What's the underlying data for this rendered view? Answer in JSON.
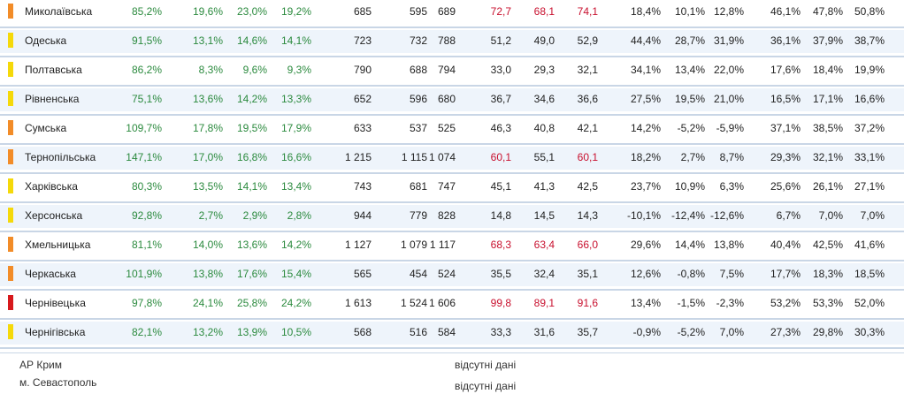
{
  "rows": [
    {
      "region": "Миколаївська",
      "marker": "orange",
      "v": [
        "85,2%",
        "19,6%",
        "23,0%",
        "19,2%",
        "685",
        "595",
        "689",
        "72,7",
        "68,1",
        "74,1",
        "18,4%",
        "10,1%",
        "12,8%",
        "46,1%",
        "47,8%",
        "50,8%"
      ],
      "c": [
        "g",
        "g",
        "g",
        "g",
        "d",
        "d",
        "d",
        "r",
        "r",
        "r",
        "d",
        "d",
        "d",
        "d",
        "d",
        "d"
      ]
    },
    {
      "region": "Одеська",
      "marker": "yellow",
      "v": [
        "91,5%",
        "13,1%",
        "14,6%",
        "14,1%",
        "723",
        "732",
        "788",
        "51,2",
        "49,0",
        "52,9",
        "44,4%",
        "28,7%",
        "31,9%",
        "36,1%",
        "37,9%",
        "38,7%"
      ],
      "c": [
        "g",
        "g",
        "g",
        "g",
        "d",
        "d",
        "d",
        "d",
        "d",
        "d",
        "d",
        "d",
        "d",
        "d",
        "d",
        "d"
      ]
    },
    {
      "region": "Полтавська",
      "marker": "yellow",
      "v": [
        "86,2%",
        "8,3%",
        "9,6%",
        "9,3%",
        "790",
        "688",
        "794",
        "33,0",
        "29,3",
        "32,1",
        "34,1%",
        "13,4%",
        "22,0%",
        "17,6%",
        "18,4%",
        "19,9%"
      ],
      "c": [
        "g",
        "g",
        "g",
        "g",
        "d",
        "d",
        "d",
        "d",
        "d",
        "d",
        "d",
        "d",
        "d",
        "d",
        "d",
        "d"
      ]
    },
    {
      "region": "Рівненська",
      "marker": "yellow",
      "v": [
        "75,1%",
        "13,6%",
        "14,2%",
        "13,3%",
        "652",
        "596",
        "680",
        "36,7",
        "34,6",
        "36,6",
        "27,5%",
        "19,5%",
        "21,0%",
        "16,5%",
        "17,1%",
        "16,6%"
      ],
      "c": [
        "g",
        "g",
        "g",
        "g",
        "d",
        "d",
        "d",
        "d",
        "d",
        "d",
        "d",
        "d",
        "d",
        "d",
        "d",
        "d"
      ]
    },
    {
      "region": "Сумська",
      "marker": "orange",
      "v": [
        "109,7%",
        "17,8%",
        "19,5%",
        "17,9%",
        "633",
        "537",
        "525",
        "46,3",
        "40,8",
        "42,1",
        "14,2%",
        "-5,2%",
        "-5,9%",
        "37,1%",
        "38,5%",
        "37,2%"
      ],
      "c": [
        "g",
        "g",
        "g",
        "g",
        "d",
        "d",
        "d",
        "d",
        "d",
        "d",
        "d",
        "d",
        "d",
        "d",
        "d",
        "d"
      ]
    },
    {
      "region": "Тернопільська",
      "marker": "orange",
      "v": [
        "147,1%",
        "17,0%",
        "16,8%",
        "16,6%",
        "1 215",
        "1 115",
        "1 074",
        "60,1",
        "55,1",
        "60,1",
        "18,2%",
        "2,7%",
        "8,7%",
        "29,3%",
        "32,1%",
        "33,1%"
      ],
      "c": [
        "g",
        "g",
        "g",
        "g",
        "d",
        "d",
        "d",
        "r",
        "d",
        "r",
        "d",
        "d",
        "d",
        "d",
        "d",
        "d"
      ]
    },
    {
      "region": "Харківська",
      "marker": "yellow",
      "v": [
        "80,3%",
        "13,5%",
        "14,1%",
        "13,4%",
        "743",
        "681",
        "747",
        "45,1",
        "41,3",
        "42,5",
        "23,7%",
        "10,9%",
        "6,3%",
        "25,6%",
        "26,1%",
        "27,1%"
      ],
      "c": [
        "g",
        "g",
        "g",
        "g",
        "d",
        "d",
        "d",
        "d",
        "d",
        "d",
        "d",
        "d",
        "d",
        "d",
        "d",
        "d"
      ]
    },
    {
      "region": "Херсонська",
      "marker": "yellow",
      "v": [
        "92,8%",
        "2,7%",
        "2,9%",
        "2,8%",
        "944",
        "779",
        "828",
        "14,8",
        "14,5",
        "14,3",
        "-10,1%",
        "-12,4%",
        "-12,6%",
        "6,7%",
        "7,0%",
        "7,0%"
      ],
      "c": [
        "g",
        "g",
        "g",
        "g",
        "d",
        "d",
        "d",
        "d",
        "d",
        "d",
        "d",
        "d",
        "d",
        "d",
        "d",
        "d"
      ]
    },
    {
      "region": "Хмельницька",
      "marker": "orange",
      "v": [
        "81,1%",
        "14,0%",
        "13,6%",
        "14,2%",
        "1 127",
        "1 079",
        "1 117",
        "68,3",
        "63,4",
        "66,0",
        "29,6%",
        "14,4%",
        "13,8%",
        "40,4%",
        "42,5%",
        "41,6%"
      ],
      "c": [
        "g",
        "g",
        "g",
        "g",
        "d",
        "d",
        "d",
        "r",
        "r",
        "r",
        "d",
        "d",
        "d",
        "d",
        "d",
        "d"
      ]
    },
    {
      "region": "Черкаська",
      "marker": "orange",
      "v": [
        "101,9%",
        "13,8%",
        "17,6%",
        "15,4%",
        "565",
        "454",
        "524",
        "35,5",
        "32,4",
        "35,1",
        "12,6%",
        "-0,8%",
        "7,5%",
        "17,7%",
        "18,3%",
        "18,5%"
      ],
      "c": [
        "g",
        "g",
        "g",
        "g",
        "d",
        "d",
        "d",
        "d",
        "d",
        "d",
        "d",
        "d",
        "d",
        "d",
        "d",
        "d"
      ]
    },
    {
      "region": "Чернівецька",
      "marker": "red",
      "v": [
        "97,8%",
        "24,1%",
        "25,8%",
        "24,2%",
        "1 613",
        "1 524",
        "1 606",
        "99,8",
        "89,1",
        "91,6",
        "13,4%",
        "-1,5%",
        "-2,3%",
        "53,2%",
        "53,3%",
        "52,0%"
      ],
      "c": [
        "g",
        "g",
        "g",
        "g",
        "d",
        "d",
        "d",
        "r",
        "r",
        "r",
        "d",
        "d",
        "d",
        "d",
        "d",
        "d"
      ]
    },
    {
      "region": "Чернігівська",
      "marker": "yellow",
      "v": [
        "82,1%",
        "13,2%",
        "13,9%",
        "10,5%",
        "568",
        "516",
        "584",
        "33,3",
        "31,6",
        "35,7",
        "-0,9%",
        "-5,2%",
        "7,0%",
        "27,3%",
        "29,8%",
        "30,3%"
      ],
      "c": [
        "g",
        "g",
        "g",
        "g",
        "d",
        "d",
        "d",
        "d",
        "d",
        "d",
        "d",
        "d",
        "d",
        "d",
        "d",
        "d"
      ]
    }
  ],
  "footer": {
    "crimea": "АР Крим",
    "sevastopol": "м. Севастополь",
    "no_data_1": "відсутні дані",
    "no_data_2": "відсутні дані"
  },
  "colors": {
    "orange": "#f28c28",
    "yellow": "#f5d90a",
    "red": "#d7191c",
    "green_text": "#2b8a3e",
    "red_text": "#c8102e"
  }
}
